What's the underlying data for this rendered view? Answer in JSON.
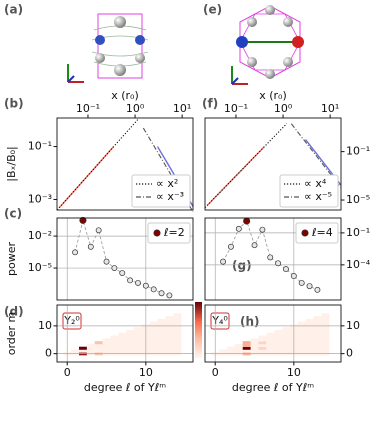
{
  "images": [
    {
      "label": "(a)"
    },
    {
      "label": "(e)"
    }
  ],
  "chart_data": [
    {
      "type": "line",
      "title": "(b)",
      "xlabel": "x (r₀)",
      "ylabel": "|Bₓ/B₀|",
      "xscale": "log",
      "yscale": "log",
      "xlim": [
        0.022,
        17
      ],
      "ylim": [
        0.0004,
        1.2
      ],
      "xticks": [
        {
          "value": 0.1,
          "label": "10⁻¹"
        },
        {
          "value": 1,
          "label": "10⁰"
        },
        {
          "value": 10,
          "label": "10¹"
        }
      ],
      "yticks": [
        {
          "value": 0.1,
          "label": "10⁻¹"
        },
        {
          "value": 0.001,
          "label": "10⁻³"
        }
      ],
      "legend": "lower right",
      "series": [
        {
          "color": "#f07060",
          "style": "solid",
          "x": [
            0.025,
            0.05,
            0.1,
            0.2,
            0.35
          ],
          "values": [
            0.0005,
            0.002,
            0.008,
            0.032,
            0.1
          ]
        },
        {
          "color": "#6a70d8",
          "style": "solid",
          "x": [
            3,
            5,
            8,
            12,
            17
          ],
          "values": [
            0.1,
            0.0216,
            0.0053,
            0.00156,
            0.00055
          ]
        },
        {
          "name": "∝ x²",
          "color": "#111111",
          "style": "dotted",
          "x": [
            0.022,
            1.2
          ],
          "values": [
            0.0004,
            1.15
          ]
        },
        {
          "name": "∝ x⁻³",
          "color": "#555555",
          "style": "dashdot",
          "x": [
            1.5,
            17
          ],
          "values": [
            0.5,
            0.00034
          ]
        }
      ]
    },
    {
      "type": "line",
      "title": "(f)",
      "xlabel": "x (r₀)",
      "xscale": "log",
      "yscale": "log",
      "xlim": [
        0.022,
        17
      ],
      "ylim": [
        1.5e-06,
        60
      ],
      "xticks": [
        {
          "value": 0.1,
          "label": "10⁻¹"
        },
        {
          "value": 1,
          "label": "10⁰"
        },
        {
          "value": 10,
          "label": "10¹"
        }
      ],
      "yticks": [
        {
          "value": 0.1,
          "label": "10⁻¹"
        },
        {
          "value": 1e-05,
          "label": "10⁻⁵"
        }
      ],
      "legend": "lower right",
      "series": [
        {
          "color": "#f07060",
          "style": "solid",
          "x": [
            0.025,
            0.05,
            0.1,
            0.2,
            0.4
          ],
          "values": [
            3.9e-06,
            6.25e-05,
            0.001,
            0.016,
            0.256
          ]
        },
        {
          "color": "#6a70d8",
          "style": "solid",
          "x": [
            3,
            5,
            8,
            12,
            17
          ],
          "values": [
            1,
            0.0778,
            0.00742,
            0.00098,
            0.00017
          ]
        },
        {
          "name": "∝ x⁴",
          "color": "#111111",
          "style": "dotted",
          "x": [
            0.022,
            1.2
          ],
          "values": [
            2.3e-06,
            20.7
          ]
        },
        {
          "name": "∝ x⁻⁵",
          "color": "#555555",
          "style": "dashdot",
          "x": [
            1.5,
            17
          ],
          "values": [
            20,
            0.000107
          ]
        }
      ]
    },
    {
      "type": "scatter",
      "title": "(c)",
      "ylabel": "power",
      "yscale": "log",
      "grid": true,
      "xlim": [
        -1.3,
        16
      ],
      "ylim": [
        1e-08,
        0.5
      ],
      "xticks": [
        0,
        10
      ],
      "yticks": [
        {
          "value": 0.01,
          "label": "10⁻²"
        },
        {
          "value": 1e-05,
          "label": "10⁻⁵"
        }
      ],
      "legend": "upper right",
      "series": [
        {
          "color": "#e6e6e6",
          "x": [
            1,
            3,
            4,
            5,
            6,
            7,
            8,
            9,
            10,
            11,
            12,
            13
          ],
          "values": [
            0.0003,
            0.001,
            0.035,
            4e-05,
            1e-05,
            3.4e-06,
            7e-07,
            4e-07,
            2.2e-07,
            1e-07,
            4.3e-08,
            2.7e-08
          ]
        },
        {
          "name": "ℓ=2",
          "color": "#800000",
          "x": [
            2
          ],
          "values": [
            0.3
          ]
        }
      ]
    },
    {
      "type": "scatter",
      "title": "(g)",
      "yscale": "log",
      "grid": true,
      "xlim": [
        -1.3,
        16
      ],
      "ylim": [
        5e-08,
        2.5
      ],
      "xticks": [
        0,
        10
      ],
      "yticks": [
        {
          "value": 0.1,
          "label": "10⁻¹"
        },
        {
          "value": 0.0001,
          "label": "10⁻⁴"
        }
      ],
      "legend": "upper right",
      "series": [
        {
          "color": "#e6e6e6",
          "x": [
            1,
            2,
            3,
            5,
            6,
            7,
            8,
            9,
            10,
            11,
            12,
            13
          ],
          "values": [
            0.0002,
            0.005,
            0.24,
            0.007,
            0.2,
            0.0005,
            0.00014,
            4e-05,
            9e-06,
            2e-06,
            1e-06,
            4.5e-07
          ]
        },
        {
          "name": "ℓ=4",
          "color": "#800000",
          "x": [
            4
          ],
          "values": [
            1.3
          ]
        }
      ]
    },
    {
      "type": "heatmap",
      "title": "(d)",
      "xlabel": "degree ℓ of Yℓᵐ",
      "ylabel": "order m",
      "annotation": "Y₂⁰",
      "colormap": "Reds",
      "clim": [
        0,
        1
      ],
      "grid": true,
      "xlim": [
        -1.3,
        16
      ],
      "ylim": [
        -3,
        17.5
      ],
      "xticks": [
        0,
        10
      ],
      "yticks": [
        0,
        10
      ],
      "x": [
        0,
        1,
        2,
        3,
        4,
        5,
        6,
        7,
        8,
        9,
        10,
        11,
        12,
        13,
        14
      ],
      "y": [
        0,
        1,
        2,
        3,
        4,
        5,
        6,
        7,
        8,
        9,
        10,
        11,
        12,
        13,
        14
      ],
      "z": [
        [
          0.03,
          0.03,
          0.9,
          0.03,
          0.3,
          0.03,
          0.03,
          0.03,
          0.03,
          0.03,
          0.03,
          0.03,
          0.03,
          0.03,
          0.03
        ],
        [
          null,
          0.03,
          0.03,
          0.03,
          0.03,
          0.03,
          0.03,
          0.03,
          0.03,
          0.03,
          0.03,
          0.03,
          0.03,
          0.03,
          0.03
        ],
        [
          null,
          null,
          1.0,
          0.03,
          0.03,
          0.03,
          0.03,
          0.03,
          0.03,
          0.03,
          0.03,
          0.03,
          0.03,
          0.03,
          0.03
        ],
        [
          null,
          null,
          null,
          0.03,
          0.03,
          0.03,
          0.03,
          0.03,
          0.03,
          0.03,
          0.03,
          0.03,
          0.03,
          0.03,
          0.03
        ],
        [
          null,
          null,
          null,
          null,
          0.3,
          0.03,
          0.03,
          0.03,
          0.03,
          0.03,
          0.03,
          0.03,
          0.03,
          0.03,
          0.03
        ],
        [
          null,
          null,
          null,
          null,
          null,
          0.03,
          0.03,
          0.03,
          0.03,
          0.03,
          0.03,
          0.03,
          0.03,
          0.03,
          0.03
        ],
        [
          null,
          null,
          null,
          null,
          null,
          null,
          0.03,
          0.03,
          0.03,
          0.03,
          0.03,
          0.03,
          0.03,
          0.03,
          0.03
        ],
        [
          null,
          null,
          null,
          null,
          null,
          null,
          null,
          0.03,
          0.03,
          0.03,
          0.03,
          0.03,
          0.03,
          0.03,
          0.03
        ],
        [
          null,
          null,
          null,
          null,
          null,
          null,
          null,
          null,
          0.03,
          0.03,
          0.03,
          0.03,
          0.03,
          0.03,
          0.03
        ],
        [
          null,
          null,
          null,
          null,
          null,
          null,
          null,
          null,
          null,
          0.03,
          0.03,
          0.03,
          0.03,
          0.03,
          0.03
        ],
        [
          null,
          null,
          null,
          null,
          null,
          null,
          null,
          null,
          null,
          null,
          0.03,
          0.03,
          0.03,
          0.03,
          0.03
        ],
        [
          null,
          null,
          null,
          null,
          null,
          null,
          null,
          null,
          null,
          null,
          null,
          0.03,
          0.03,
          0.03,
          0.03
        ],
        [
          null,
          null,
          null,
          null,
          null,
          null,
          null,
          null,
          null,
          null,
          null,
          null,
          0.03,
          0.03,
          0.03
        ],
        [
          null,
          null,
          null,
          null,
          null,
          null,
          null,
          null,
          null,
          null,
          null,
          null,
          null,
          0.03,
          0.03
        ],
        [
          null,
          null,
          null,
          null,
          null,
          null,
          null,
          null,
          null,
          null,
          null,
          null,
          null,
          null,
          0.03
        ]
      ]
    },
    {
      "type": "heatmap",
      "title": "(h)",
      "xlabel": "degree ℓ of Yℓᵐ",
      "annotation": "Y₄⁰",
      "colormap": "Reds",
      "clim": [
        0,
        1
      ],
      "grid": true,
      "xlim": [
        -1.3,
        16
      ],
      "ylim": [
        -3,
        17.5
      ],
      "xticks": [
        0,
        10
      ],
      "yticks": [
        0,
        10
      ],
      "x": [
        0,
        1,
        2,
        3,
        4,
        5,
        6,
        7,
        8,
        9,
        10,
        11,
        12,
        13,
        14
      ],
      "y": [
        0,
        1,
        2,
        3,
        4,
        5,
        6,
        7,
        8,
        9,
        10,
        11,
        12,
        13,
        14
      ],
      "z": [
        [
          0.03,
          0.03,
          0.03,
          0.03,
          0.4,
          0.03,
          0.03,
          0.03,
          0.03,
          0.03,
          0.03,
          0.03,
          0.03,
          0.03,
          0.03
        ],
        [
          null,
          0.03,
          0.03,
          0.03,
          0.03,
          0.03,
          0.03,
          0.03,
          0.03,
          0.03,
          0.03,
          0.03,
          0.03,
          0.03,
          0.03
        ],
        [
          null,
          null,
          0.03,
          0.03,
          1.0,
          0.03,
          0.2,
          0.03,
          0.03,
          0.03,
          0.03,
          0.03,
          0.03,
          0.03,
          0.03
        ],
        [
          null,
          null,
          null,
          0.03,
          0.4,
          0.03,
          0.03,
          0.03,
          0.03,
          0.03,
          0.03,
          0.03,
          0.03,
          0.03,
          0.03
        ],
        [
          null,
          null,
          null,
          null,
          0.4,
          0.03,
          0.2,
          0.03,
          0.03,
          0.03,
          0.03,
          0.03,
          0.03,
          0.03,
          0.03
        ],
        [
          null,
          null,
          null,
          null,
          null,
          0.03,
          0.03,
          0.03,
          0.03,
          0.03,
          0.03,
          0.03,
          0.03,
          0.03,
          0.03
        ],
        [
          null,
          null,
          null,
          null,
          null,
          null,
          0.03,
          0.03,
          0.03,
          0.03,
          0.03,
          0.03,
          0.03,
          0.03,
          0.03
        ],
        [
          null,
          null,
          null,
          null,
          null,
          null,
          null,
          0.03,
          0.03,
          0.03,
          0.03,
          0.03,
          0.03,
          0.03,
          0.03
        ],
        [
          null,
          null,
          null,
          null,
          null,
          null,
          null,
          null,
          0.03,
          0.03,
          0.03,
          0.03,
          0.03,
          0.03,
          0.03
        ],
        [
          null,
          null,
          null,
          null,
          null,
          null,
          null,
          null,
          null,
          0.03,
          0.03,
          0.03,
          0.03,
          0.03,
          0.03
        ],
        [
          null,
          null,
          null,
          null,
          null,
          null,
          null,
          null,
          null,
          null,
          0.03,
          0.03,
          0.03,
          0.03,
          0.03
        ],
        [
          null,
          null,
          null,
          null,
          null,
          null,
          null,
          null,
          null,
          null,
          null,
          0.03,
          0.03,
          0.03,
          0.03
        ],
        [
          null,
          null,
          null,
          null,
          null,
          null,
          null,
          null,
          null,
          null,
          null,
          null,
          0.03,
          0.03,
          0.03
        ],
        [
          null,
          null,
          null,
          null,
          null,
          null,
          null,
          null,
          null,
          null,
          null,
          null,
          null,
          0.03,
          0.03
        ],
        [
          null,
          null,
          null,
          null,
          null,
          null,
          null,
          null,
          null,
          null,
          null,
          null,
          null,
          null,
          0.03
        ]
      ]
    }
  ]
}
